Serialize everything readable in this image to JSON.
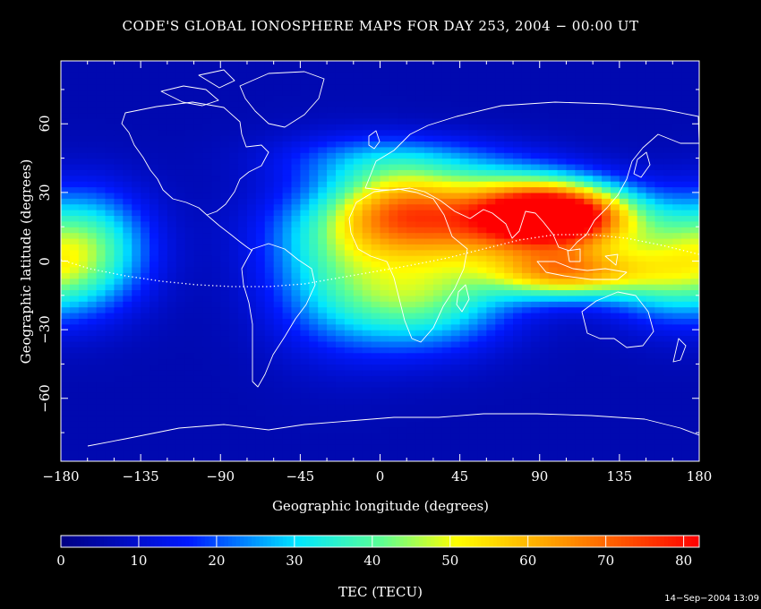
{
  "title": "CODE'S GLOBAL IONOSPHERE MAPS FOR DAY 253, 2004 − 00:00 UT",
  "timestamp": "14−Sep−2004 13:09",
  "colors": {
    "background": "#000000",
    "coast": "#ffffff"
  },
  "map_data": {
    "type": "heatmap",
    "xlabel": "Geographic longitude (degrees)",
    "ylabel": "Geographic latitude (degrees)",
    "xlim": [
      -180,
      180
    ],
    "ylim": [
      -87.5,
      87.5
    ],
    "x_ticks": [
      -180,
      -135,
      -90,
      -45,
      0,
      45,
      90,
      135,
      180
    ],
    "x_tick_labels": [
      "−180",
      "−135",
      "−90",
      "−45",
      "0",
      "45",
      "90",
      "135",
      "180"
    ],
    "y_ticks": [
      -60,
      -30,
      0,
      30,
      60
    ],
    "y_tick_labels": [
      "−60",
      "−30",
      "0",
      "30",
      "60"
    ],
    "colorbar": {
      "label": "TEC (TECU)",
      "range": [
        0,
        82
      ],
      "ticks": [
        0,
        10,
        20,
        30,
        40,
        50,
        60,
        70,
        80
      ],
      "tick_labels": [
        "0",
        "10",
        "20",
        "30",
        "40",
        "50",
        "60",
        "70",
        "80"
      ]
    },
    "grid_step": {
      "lon": 5,
      "lat": 2.5
    },
    "tec_features": [
      {
        "lon": 100,
        "lat": 20,
        "peak": 62,
        "sigma_lon": 28,
        "sigma_lat": 9
      },
      {
        "lon": 105,
        "lat": -5,
        "peak": 48,
        "sigma_lon": 30,
        "sigma_lat": 8
      },
      {
        "lon": 60,
        "lat": 15,
        "peak": 45,
        "sigma_lon": 55,
        "sigma_lat": 12
      },
      {
        "lon": 25,
        "lat": -15,
        "peak": 33,
        "sigma_lon": 35,
        "sigma_lat": 16
      },
      {
        "lon": 10,
        "lat": 25,
        "peak": 28,
        "sigma_lon": 25,
        "sigma_lat": 12
      },
      {
        "lon": -25,
        "lat": 0,
        "peak": 22,
        "sigma_lon": 30,
        "sigma_lat": 25
      },
      {
        "lon": -165,
        "lat": 5,
        "peak": 32,
        "sigma_lon": 25,
        "sigma_lat": 18
      },
      {
        "lon": 160,
        "lat": -5,
        "peak": 25,
        "sigma_lon": 25,
        "sigma_lat": 15
      },
      {
        "lon": 10,
        "lat": 45,
        "peak": 15,
        "sigma_lon": 45,
        "sigma_lat": 8
      },
      {
        "lon": 70,
        "lat": 30,
        "peak": 20,
        "sigma_lon": 40,
        "sigma_lat": 10
      }
    ]
  }
}
